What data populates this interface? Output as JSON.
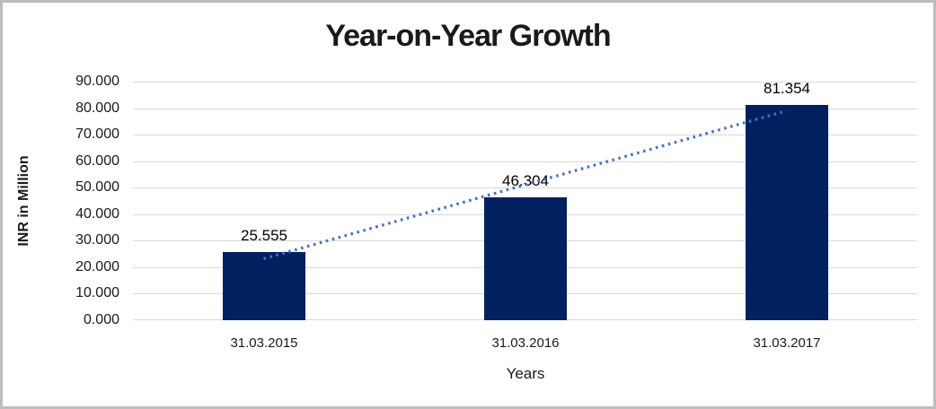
{
  "window": {
    "background": "#ffffff",
    "frame_border_color": "#bdbdbd"
  },
  "chart_data": {
    "type": "bar",
    "title": "Year-on-Year Growth",
    "xlabel": "Years",
    "ylabel": "INR in Million",
    "categories": [
      "31.03.2015",
      "31.03.2016",
      "31.03.2017"
    ],
    "values": [
      25555,
      46304,
      81354
    ],
    "value_labels": [
      "25.555",
      "46.304",
      "81.354"
    ],
    "ylim": [
      0,
      90000
    ],
    "ytick_step": 10000,
    "ytick_labels": [
      "0.000",
      "10.000",
      "20.000",
      "30.000",
      "40.000",
      "50.000",
      "60.000",
      "70.000",
      "80.000",
      "90.000"
    ],
    "grid": true,
    "legend": "none",
    "bar_color": "#002060",
    "gridline_color": "#d9d9d9",
    "text_color": "#1a1a1a",
    "trendline": {
      "type": "linear",
      "style": "dotted",
      "color": "#4472c4"
    }
  }
}
